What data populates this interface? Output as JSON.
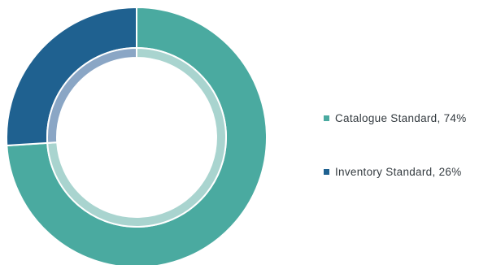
{
  "chart_data": {
    "type": "pie",
    "variant": "donut",
    "legend_position": "right",
    "slices": [
      {
        "label": "Catalogue Standard",
        "value": 74,
        "display": "Catalogue Standard, 74%",
        "color": "#4aaaa0",
        "inner_color": "#a9d4cf"
      },
      {
        "label": "Inventory Standard",
        "value": 26,
        "display": "Inventory Standard, 26%",
        "color": "#1f6190",
        "inner_color": "#8aa6c5"
      }
    ]
  }
}
